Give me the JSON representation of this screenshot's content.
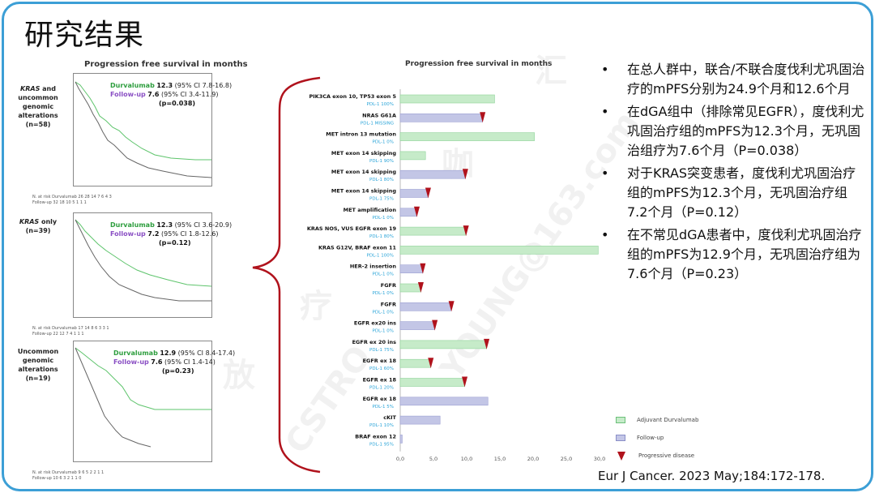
{
  "slide": {
    "title": "研究结果",
    "reference": "Eur J Cancer. 2023 May;184:172-178."
  },
  "km": {
    "title": "Progression free survival in months",
    "panels": [
      {
        "label_parts": [
          "KRAS",
          " and uncommon genomic alterations",
          "(n=58)"
        ],
        "durv": "Durvalumab",
        "durv_val": "12.3",
        "durv_ci": "(95% CI 7.8-16.8)",
        "fu": "Follow-up",
        "fu_val": "7.6",
        "fu_ci": "(95% CI 3.4-11.9)",
        "p": "(p=0.038)",
        "risk_rows": [
          "N. at risk  Durvalumab   26    28    14    7    6    4    3",
          "              Follow-up    32    18    10    5    1    1    1"
        ]
      },
      {
        "label_parts": [
          "KRAS",
          " only",
          "(n=39)"
        ],
        "durv": "Durvalumab",
        "durv_val": "12.3",
        "durv_ci": "(95% CI 3.6-20.9)",
        "fu": "Follow-up",
        "fu_val": "7.2",
        "fu_ci": "(95% CI 1.8-12.6)",
        "p": "(p=0.12)",
        "risk_rows": [
          "N. at risk  Durvalumab   17    14    8    6    3    3    1",
          "              Follow-up    22    12    7    4    1    1    1"
        ]
      },
      {
        "label_parts": [
          "",
          "Uncommon genomic alterations (n=19)",
          ""
        ],
        "durv": "Durvalumab",
        "durv_val": "12.9",
        "durv_ci": "(95% CI 8.4-17.4)",
        "fu": "Follow-up",
        "fu_val": "7.6",
        "fu_ci": "(95% CI 1.4-14)",
        "p": "(p=0.23)",
        "risk_rows": [
          "N. at risk  Durvalumab   9    6    5    2    2    1    1",
          "              Follow-up    10    6    3    2    1    1    0"
        ]
      }
    ]
  },
  "chart_data": {
    "type": "bar",
    "title": "Progression free survival in months",
    "xlim": [
      0,
      30
    ],
    "xticks": [
      "0,0",
      "5,0",
      "10,0",
      "15,0",
      "20,0",
      "25,0",
      "30,0"
    ],
    "legend": [
      "Adjuvant Durvalumab",
      "Follow-up",
      "Progressive disease"
    ],
    "colors": {
      "durvalumab": "#c6ebc9",
      "followup": "#c3c6e6",
      "progressive": "#b0121c",
      "pdl1": "#2aa4d8"
    },
    "rows": [
      {
        "name": "PIK3CA exon 10, TP53 exon 5",
        "pdl1": "PDL-1 100%",
        "group": "durvalumab",
        "value": 14.2,
        "progressive": false
      },
      {
        "name": "NRAS  G61A",
        "pdl1": "PDL-1 MISSING",
        "group": "followup",
        "value": 12.4,
        "progressive": true
      },
      {
        "name": "MET intron 13 mutation",
        "pdl1": "PDL-1 0%",
        "group": "durvalumab",
        "value": 20.2,
        "progressive": false
      },
      {
        "name": "MET exon 14 skipping",
        "pdl1": "PDL-1 90%",
        "group": "durvalumab",
        "value": 3.8,
        "progressive": false
      },
      {
        "name": "MET exon 14 skipping",
        "pdl1": "PDL-1 80%",
        "group": "followup",
        "value": 9.8,
        "progressive": true
      },
      {
        "name": "MET exon 14 skipping",
        "pdl1": "PDL-1 75%",
        "group": "followup",
        "value": 4.2,
        "progressive": true
      },
      {
        "name": "MET amplification",
        "pdl1": "PDL-1 0%",
        "group": "followup",
        "value": 2.5,
        "progressive": true
      },
      {
        "name": "KRAS NOS, VUS EGFR exon 19",
        "pdl1": "PDL-1 80%",
        "group": "durvalumab",
        "value": 9.9,
        "progressive": true
      },
      {
        "name": "KRAS G12V, BRAF exon 11",
        "pdl1": "PDL-1 100%",
        "group": "durvalumab",
        "value": 29.8,
        "progressive": false
      },
      {
        "name": "HER-2 insertion",
        "pdl1": "PDL-1 0%",
        "group": "followup",
        "value": 3.4,
        "progressive": true
      },
      {
        "name": "FGFR",
        "pdl1": "PDL-1 0%",
        "group": "durvalumab",
        "value": 3.1,
        "progressive": true
      },
      {
        "name": "FGFR",
        "pdl1": "PDL-1 0%",
        "group": "followup",
        "value": 7.7,
        "progressive": true
      },
      {
        "name": "EGFR ex20 ins",
        "pdl1": "PDL-1 0%",
        "group": "followup",
        "value": 5.2,
        "progressive": true
      },
      {
        "name": "EGFR ex 20 ins",
        "pdl1": "PDL-1 75%",
        "group": "durvalumab",
        "value": 13.0,
        "progressive": true
      },
      {
        "name": "EGFR ex 18",
        "pdl1": "PDL-1 60%",
        "group": "durvalumab",
        "value": 4.6,
        "progressive": true
      },
      {
        "name": "EGFR ex 18",
        "pdl1": "PDL-1 20%",
        "group": "durvalumab",
        "value": 9.7,
        "progressive": true
      },
      {
        "name": "EGFR  ex  18",
        "pdl1": "PDL-1 5%",
        "group": "followup",
        "value": 13.2,
        "progressive": false
      },
      {
        "name": "cKIT",
        "pdl1": "PDL-1 10%",
        "group": "followup",
        "value": 6.0,
        "progressive": false
      },
      {
        "name": "BRAF exon 12",
        "pdl1": "PDL-1 95%",
        "group": "followup",
        "value": 0.3,
        "progressive": false
      }
    ]
  },
  "bullets": [
    "在总人群中，联合/不联合度伐利尤巩固治疗的mPFS分别为24.9个月和12.6个月",
    "在dGA组中（排除常见EGFR），度伐利尤巩固治疗组的mPFS为12.3个月，无巩固治组疗为7.6个月（P=0.038）",
    "对于KRAS突变患者，度伐利尤巩固治疗组的mPFS为12.3个月，无巩固治疗组7.2个月（P=0.12）",
    "在不常见dGA患者中，度伐利尤巩固治疗组的mPFS为12.9个月，无巩固治疗组为7.6个月（P=0.23）"
  ],
  "watermark": [
    "放",
    "疗",
    "咖",
    "汇",
    "CSTRO",
    "YOUNG@163.com"
  ]
}
